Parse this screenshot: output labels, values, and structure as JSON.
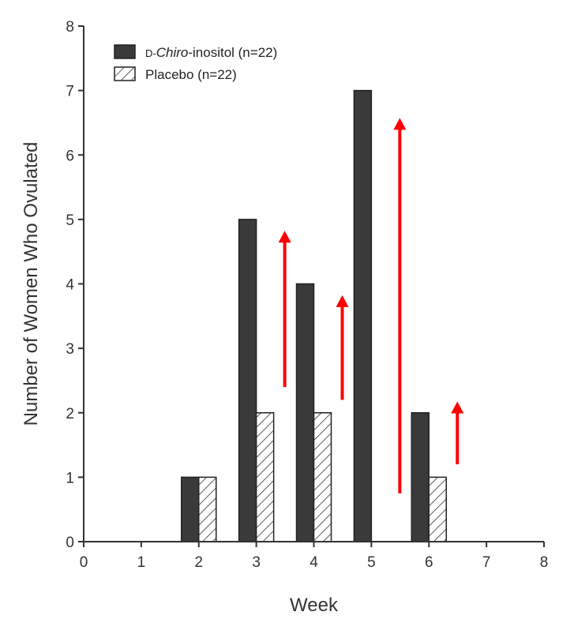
{
  "chart_data": {
    "type": "bar",
    "xlabel": "Week",
    "ylabel": "Number of Women Who Ovulated",
    "xlim": [
      0,
      8
    ],
    "ylim": [
      0,
      8
    ],
    "xticks": [
      "0",
      "1",
      "2",
      "3",
      "4",
      "5",
      "6",
      "7",
      "8"
    ],
    "yticks": [
      "0",
      "1",
      "2",
      "3",
      "4",
      "5",
      "6",
      "7",
      "8"
    ],
    "grid": false,
    "legend_position": "top-left",
    "series": [
      {
        "name_prefix": "D-",
        "name_italic": "Chiro",
        "name_suffix": "-inositol (n=22)",
        "fill": "#3a3a3a",
        "pattern": "solid",
        "points": [
          {
            "week": 2,
            "value": 1
          },
          {
            "week": 3,
            "value": 5
          },
          {
            "week": 4,
            "value": 4
          },
          {
            "week": 5,
            "value": 7
          },
          {
            "week": 6,
            "value": 2
          }
        ]
      },
      {
        "name_prefix": "",
        "name_italic": "",
        "name_suffix": "Placebo (n=22)",
        "fill": "#ffffff",
        "pattern": "hatched",
        "points": [
          {
            "week": 2,
            "value": 1
          },
          {
            "week": 3,
            "value": 2
          },
          {
            "week": 4,
            "value": 2
          },
          {
            "week": 5,
            "value": 0
          },
          {
            "week": 6,
            "value": 1
          }
        ]
      }
    ],
    "annotations": {
      "type": "arrows-up",
      "color": "#ff0000",
      "arrows": [
        {
          "week": 3,
          "from": 2.4,
          "to": 4.8
        },
        {
          "week": 4,
          "from": 2.2,
          "to": 3.8
        },
        {
          "week": 5,
          "from": 0.75,
          "to": 6.55
        },
        {
          "week": 6,
          "from": 1.2,
          "to": 2.15
        }
      ]
    }
  }
}
